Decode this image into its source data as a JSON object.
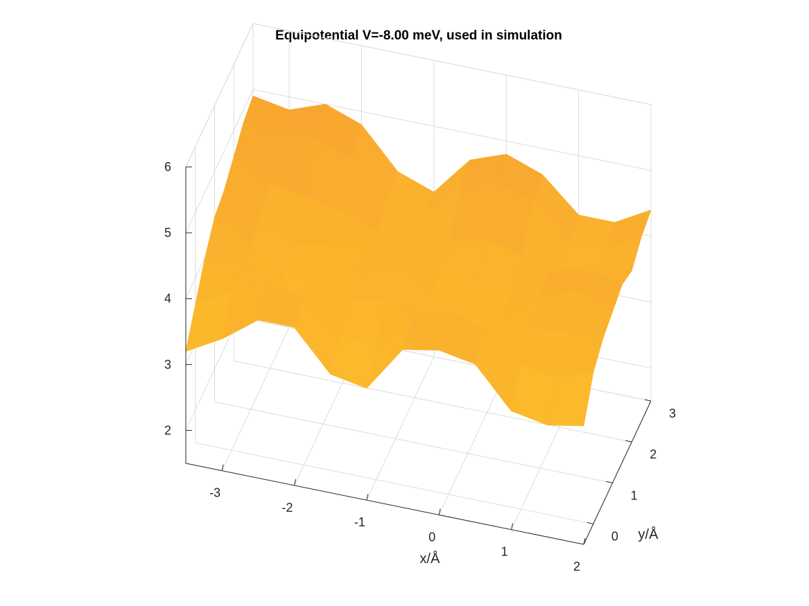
{
  "chart_data": {
    "type": "surface",
    "title": "Equipotential V=-8.00 meV, used in simulation",
    "xlabel": "x/Å",
    "ylabel": "y/Å",
    "zlabel": "",
    "xlim": [
      -3.5,
      2
    ],
    "ylim": [
      -0.5,
      3
    ],
    "zlim": [
      1.5,
      6
    ],
    "x_ticks": [
      "-3",
      "-2",
      "-1",
      "0",
      "1",
      "2"
    ],
    "y_ticks": [
      "0",
      "1",
      "2",
      "3"
    ],
    "z_ticks": [
      "2",
      "3",
      "4",
      "5",
      "6"
    ],
    "grid": true,
    "colormap_low": "#f7a430",
    "colormap_high": "#fcbd2a",
    "surface_x": [
      -3.5,
      -3,
      -2.5,
      -2,
      -1.5,
      -1,
      -0.5,
      0,
      0.5,
      1,
      1.5,
      2
    ],
    "surface_y": [
      -0.5,
      0,
      0.5,
      1,
      1.5,
      2,
      2.5,
      3
    ],
    "surface_z": [
      [
        3.2,
        3.5,
        3.9,
        3.9,
        3.3,
        3.2,
        3.9,
        4.0,
        3.9,
        3.3,
        3.2,
        3.3
      ],
      [
        3.6,
        3.9,
        4.1,
        4.0,
        3.6,
        3.5,
        4.1,
        4.3,
        4.1,
        3.7,
        3.6,
        3.8
      ],
      [
        4.0,
        4.0,
        3.8,
        3.7,
        3.8,
        3.9,
        3.8,
        3.8,
        3.8,
        3.9,
        4.0,
        4.0
      ],
      [
        4.3,
        4.0,
        3.7,
        3.6,
        3.9,
        4.2,
        3.8,
        3.6,
        3.7,
        4.1,
        4.3,
        4.1
      ],
      [
        4.4,
        4.1,
        3.8,
        3.9,
        4.1,
        4.1,
        3.9,
        3.8,
        3.9,
        4.2,
        4.3,
        4.2
      ],
      [
        4.6,
        4.3,
        4.2,
        4.1,
        3.9,
        3.9,
        4.0,
        4.1,
        4.0,
        3.9,
        3.9,
        4.1
      ],
      [
        4.8,
        4.7,
        4.8,
        4.6,
        4.1,
        4.0,
        4.5,
        4.7,
        4.5,
        4.0,
        4.0,
        4.3
      ],
      [
        4.9,
        4.8,
        5.0,
        4.8,
        4.2,
        4.0,
        4.6,
        4.8,
        4.6,
        4.1,
        4.1,
        4.4
      ]
    ]
  }
}
